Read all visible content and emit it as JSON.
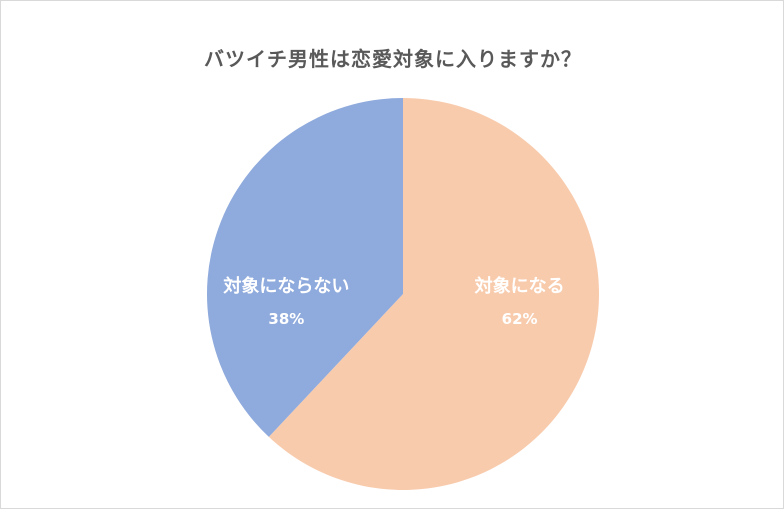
{
  "chart_data": {
    "type": "pie",
    "title": "バツイチ男性は恋愛対象に入りますか？",
    "slices": [
      {
        "label": "対象になる",
        "value": 62,
        "value_label": "62%",
        "color": "#f8cbad"
      },
      {
        "label": "対象にならない",
        "value": 38,
        "value_label": "38%",
        "color": "#8faadc"
      }
    ],
    "start_angle": "12 o'clock",
    "direction": "clockwise",
    "legend": "none",
    "data_labels": "inside"
  }
}
